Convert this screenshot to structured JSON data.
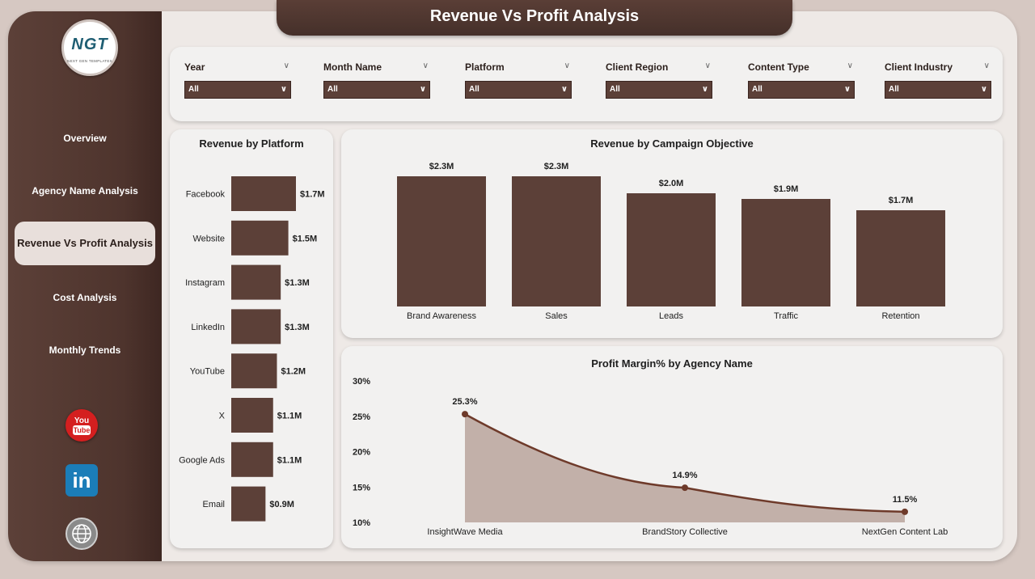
{
  "header": {
    "title": "Revenue Vs Profit Analysis"
  },
  "logo": {
    "text": "NGT",
    "subtitle": "NEXT GEN TEMPLATES"
  },
  "sidebar": {
    "items": [
      {
        "label": "Overview",
        "active": false
      },
      {
        "label": "Agency Name Analysis",
        "active": false
      },
      {
        "label": "Revenue Vs Profit Analysis",
        "active": true
      },
      {
        "label": "Cost Analysis",
        "active": false
      },
      {
        "label": "Monthly Trends",
        "active": false
      }
    ],
    "social": {
      "youtube_top": "You",
      "youtube_bottom": "Tube",
      "linkedin": "in"
    }
  },
  "filters": [
    {
      "label": "Year",
      "value": "All"
    },
    {
      "label": "Month Name",
      "value": "All"
    },
    {
      "label": "Platform",
      "value": "All"
    },
    {
      "label": "Client Region",
      "value": "All"
    },
    {
      "label": "Content Type",
      "value": "All"
    },
    {
      "label": "Client Industry",
      "value": "All"
    }
  ],
  "colors": {
    "bar": "#5c4038",
    "line": "#6e3a2a",
    "area": "#bfaca4",
    "accent": "#4e342d"
  },
  "chart_data": [
    {
      "type": "bar",
      "orientation": "horizontal",
      "title": "Revenue by Platform",
      "categories": [
        "Facebook",
        "Website",
        "Instagram",
        "LinkedIn",
        "YouTube",
        "X",
        "Google Ads",
        "Email"
      ],
      "values": [
        1.7,
        1.5,
        1.3,
        1.3,
        1.2,
        1.1,
        1.1,
        0.9
      ],
      "labels": [
        "$1.7M",
        "$1.5M",
        "$1.3M",
        "$1.3M",
        "$1.2M",
        "$1.1M",
        "$1.1M",
        "$0.9M"
      ],
      "unit": "$M"
    },
    {
      "type": "bar",
      "orientation": "vertical",
      "title": "Revenue by Campaign Objective",
      "categories": [
        "Brand Awareness",
        "Sales",
        "Leads",
        "Traffic",
        "Retention"
      ],
      "values": [
        2.3,
        2.3,
        2.0,
        1.9,
        1.7
      ],
      "labels": [
        "$2.3M",
        "$2.3M",
        "$2.0M",
        "$1.9M",
        "$1.7M"
      ],
      "unit": "$M"
    },
    {
      "type": "area",
      "title": "Profit Margin% by Agency Name",
      "categories": [
        "InsightWave Media",
        "BrandStory Collective",
        "NextGen Content Lab"
      ],
      "values": [
        25.3,
        14.9,
        11.5
      ],
      "labels": [
        "25.3%",
        "14.9%",
        "11.5%"
      ],
      "ylim": [
        10,
        30
      ],
      "yticks": [
        30,
        25,
        20,
        15,
        10
      ],
      "ytick_labels": [
        "30%",
        "25%",
        "20%",
        "15%",
        "10%"
      ]
    }
  ]
}
